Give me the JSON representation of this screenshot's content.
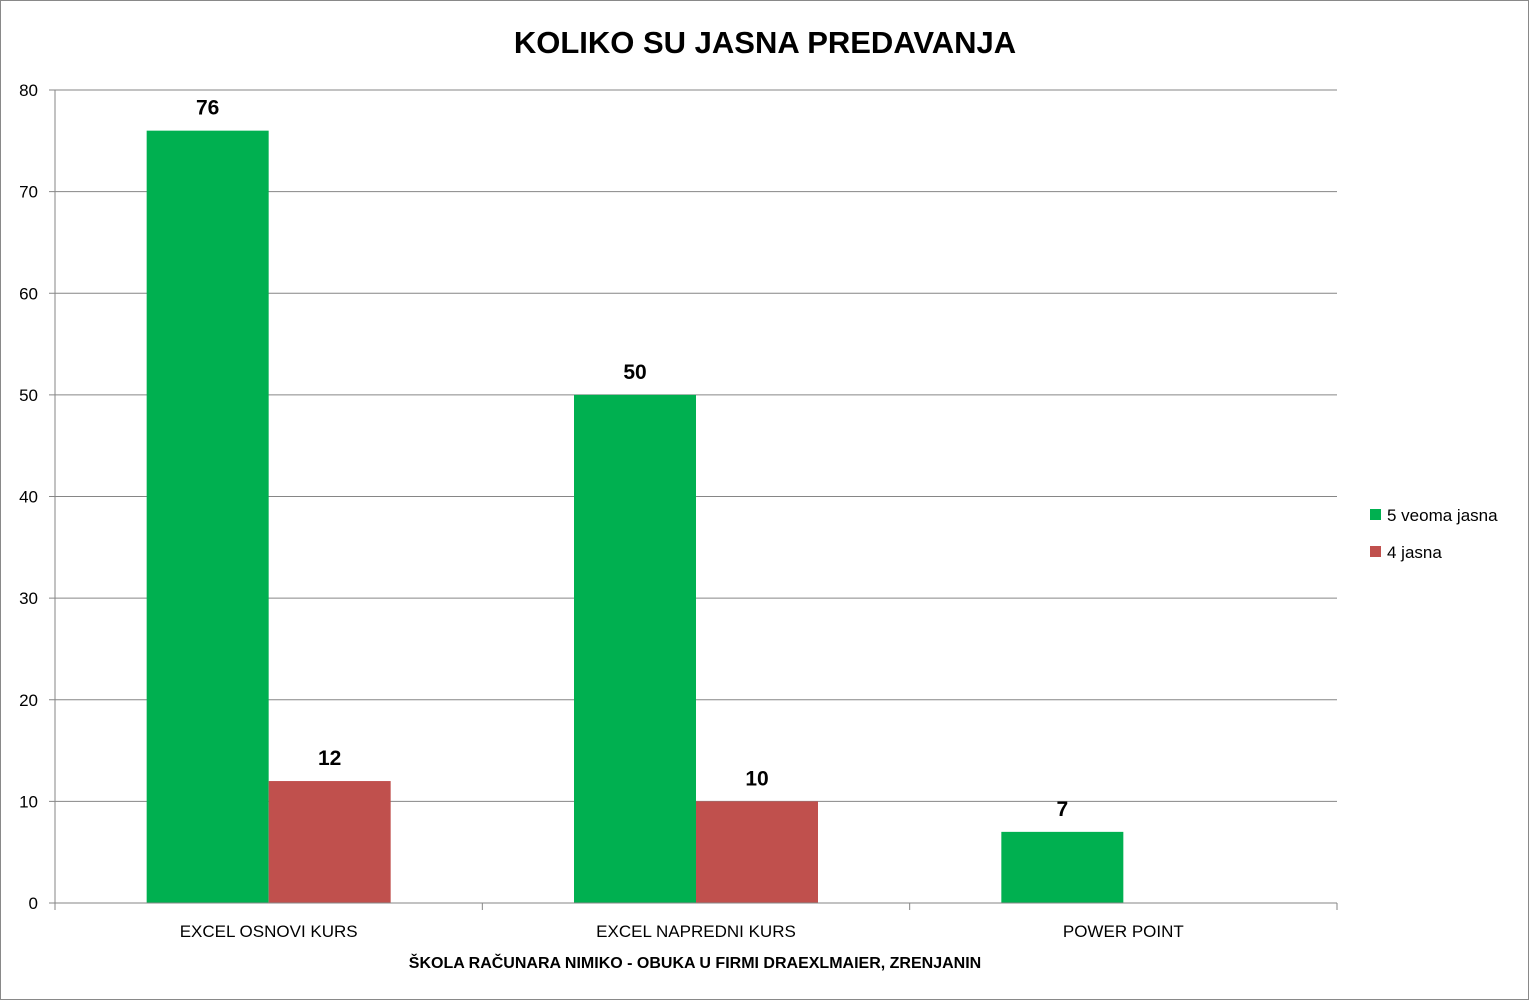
{
  "chart_data": {
    "type": "bar",
    "title": "KOLIKO SU JASNA PREDAVANJA",
    "xlabel": "ŠKOLA RAČUNARA NIMIKO - OBUKA U FIRMI DRAEXLMAIER, ZRENJANIN",
    "ylabel": "",
    "ylim": [
      0,
      80
    ],
    "yticks": [
      0,
      10,
      20,
      30,
      40,
      50,
      60,
      70,
      80
    ],
    "grid": true,
    "legend_position": "right",
    "categories": [
      "EXCEL OSNOVI KURS",
      "EXCEL NAPREDNI KURS",
      "POWER POINT"
    ],
    "series": [
      {
        "name": "5 veoma jasna",
        "color": "#00B050",
        "values": [
          76,
          50,
          7
        ]
      },
      {
        "name": "4 jasna",
        "color": "#C0504D",
        "values": [
          12,
          10,
          null
        ]
      }
    ],
    "data_labels": true
  }
}
